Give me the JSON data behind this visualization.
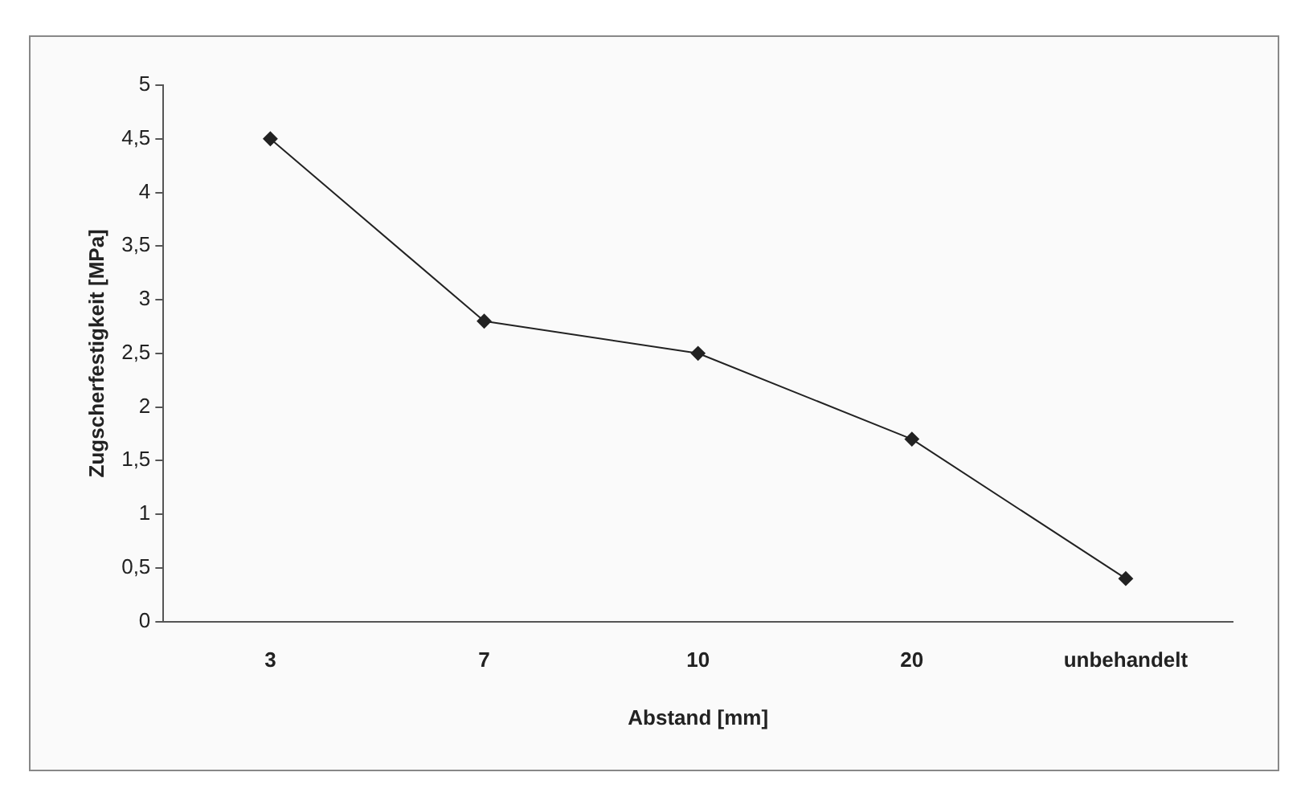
{
  "chart_data": {
    "type": "line",
    "xlabel": "Abstand [mm]",
    "ylabel": "Zugscherfestigkeit [MPa]",
    "categories": [
      "3",
      "7",
      "10",
      "20",
      "unbehandelt"
    ],
    "series": [
      {
        "color": "#222222",
        "values": [
          4.5,
          2.8,
          2.5,
          1.7,
          0.4
        ]
      }
    ],
    "ylim": [
      0,
      5
    ],
    "yticks": [
      0,
      {
        "value": 0.5,
        "label": "0,5"
      },
      1,
      {
        "value": 1.5,
        "label": "1,5"
      },
      2,
      {
        "value": 2.5,
        "label": "2,5"
      },
      3,
      {
        "value": 3.5,
        "label": "3,5"
      },
      4,
      {
        "value": 4.5,
        "label": "4,5"
      },
      5
    ],
    "grid": false,
    "legend": false,
    "marker": "diamond",
    "line_style": "solid"
  }
}
